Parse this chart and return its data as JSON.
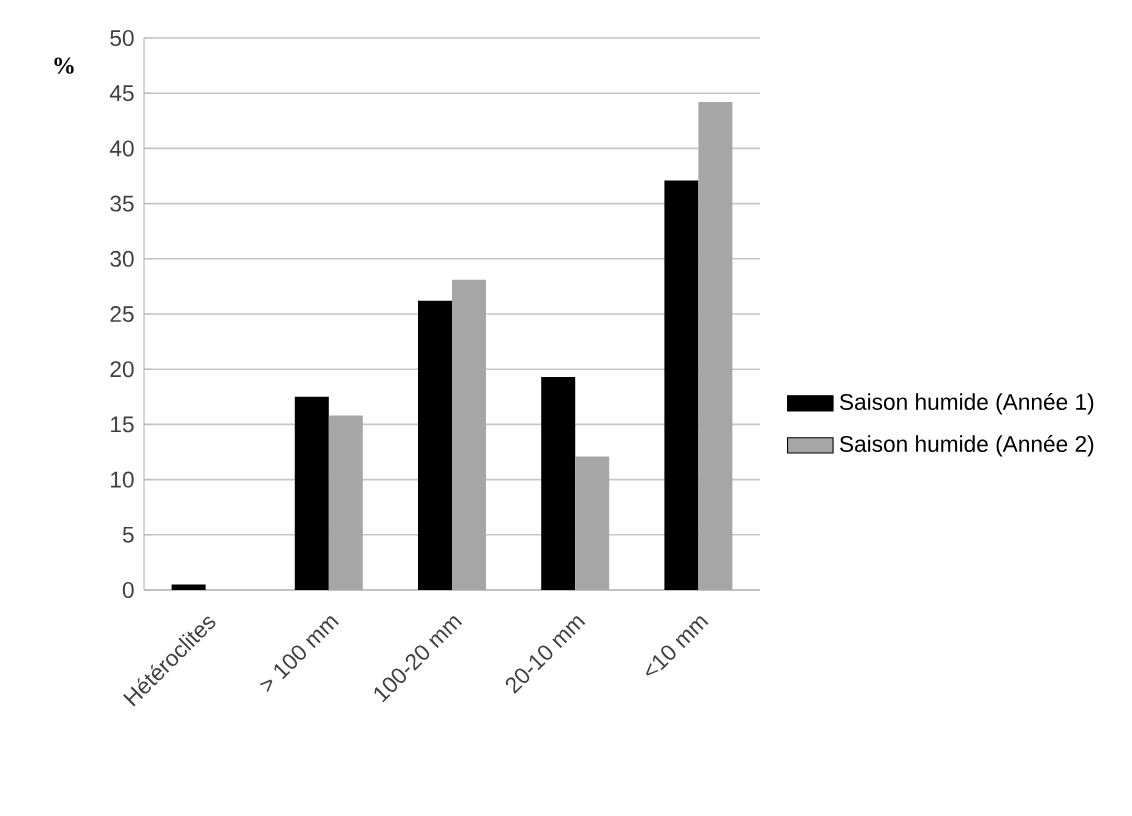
{
  "chart_data": {
    "type": "bar",
    "ylabel": "%",
    "categories": [
      "Hétéroclites",
      "> 100 mm",
      "100-20 mm",
      "20-10 mm",
      "<10 mm"
    ],
    "series": [
      {
        "name": "Saison humide (Année 1)",
        "color": "#000000",
        "values": [
          0.5,
          17.5,
          26.2,
          19.3,
          37.1
        ]
      },
      {
        "name": "Saison humide (Année 2)",
        "color": "#a6a6a6",
        "values": [
          0,
          15.8,
          28.1,
          12.1,
          44.2
        ]
      }
    ],
    "ylim": [
      0,
      50
    ],
    "yticks": [
      0,
      5,
      10,
      15,
      20,
      25,
      30,
      35,
      40,
      45,
      50
    ],
    "grid": "y",
    "legend": "right"
  }
}
